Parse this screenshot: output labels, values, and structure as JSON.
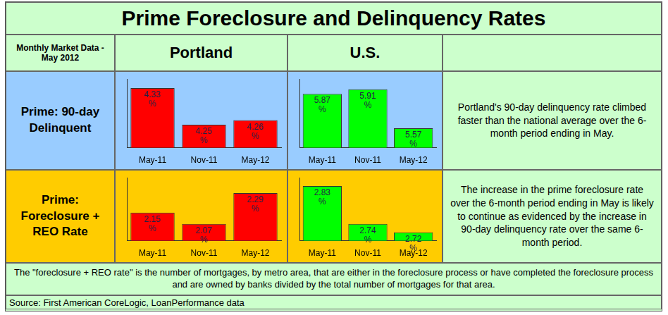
{
  "title": "Prime Foreclosure and Delinquency Rates",
  "header": {
    "label": "Monthly Market Data - May 2012",
    "columns": [
      "Portland",
      "U.S."
    ]
  },
  "rows": [
    {
      "label": "Prime: 90-day Delinquent",
      "background": "#99ccff",
      "note": "Portland's 90-day delinquency rate climbed faster than the national average over the 6-month period ending in May."
    },
    {
      "label": "Prime: Foreclosure + REO Rate",
      "background": "#ffcc00",
      "note": "The increase in the prime foreclosure rate over the 6-month period ending in May is likely to continue as evidenced by the increase in 90-day delinquency rate over the same 6-month period."
    }
  ],
  "footnote": "The \"foreclosure + REO rate\" is the number of mortgages, by metro area, that are either in the foreclosure process or have completed the foreclosure process and are owned by banks divided by the total number of mortgages for that area.",
  "source": "Source: First American CoreLogic, LoanPerformance data",
  "chart_data": [
    {
      "type": "bar",
      "categories": [
        "May-11",
        "Nov-11",
        "May-12"
      ],
      "values": [
        4.33,
        4.25,
        4.26
      ],
      "value_labels": [
        "4.33 %",
        "4.25 %",
        "4.26 %"
      ],
      "color": "#ff0000",
      "ylim": [
        4.2,
        4.35
      ],
      "data_labels": true,
      "tick_labels": "x",
      "grid": false
    },
    {
      "type": "bar",
      "categories": [
        "May-11",
        "Nov-11",
        "May-12"
      ],
      "values": [
        5.87,
        5.91,
        5.57
      ],
      "value_labels": [
        "5.87 %",
        "5.91 %",
        "5.57 %"
      ],
      "color": "#00ff00",
      "ylim": [
        5.4,
        6.0
      ],
      "data_labels": true,
      "tick_labels": "x",
      "grid": false
    },
    {
      "type": "bar",
      "categories": [
        "May-11",
        "Nov-11",
        "May-12"
      ],
      "values": [
        2.15,
        2.07,
        2.29
      ],
      "value_labels": [
        "2.15 %",
        "2.07 %",
        "2.29 %"
      ],
      "color": "#ff0000",
      "ylim": [
        1.95,
        2.4
      ],
      "data_labels": true,
      "tick_labels": "x",
      "grid": false
    },
    {
      "type": "bar",
      "categories": [
        "May-11",
        "Nov-11",
        "May-12"
      ],
      "values": [
        2.83,
        2.74,
        2.72
      ],
      "value_labels": [
        "2.83 %",
        "2.74 %",
        "2.72 %"
      ],
      "color": "#00ff00",
      "ylim": [
        2.7,
        2.85
      ],
      "data_labels": true,
      "tick_labels": "x",
      "grid": false
    }
  ]
}
